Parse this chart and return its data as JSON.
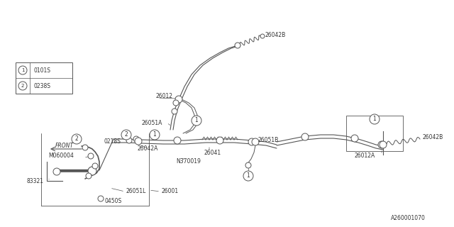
{
  "bg_color": "#ffffff",
  "line_color": "#555555",
  "text_color": "#333333",
  "diagram_id": "A260001070",
  "legend": [
    {
      "num": "1",
      "code": "0101S"
    },
    {
      "num": "2",
      "code": "0238S"
    }
  ]
}
